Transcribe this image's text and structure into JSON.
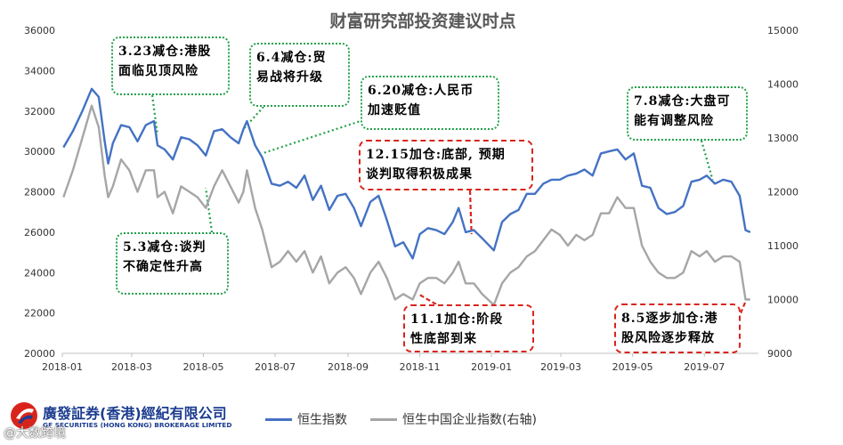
{
  "chart_data": {
    "type": "line",
    "title": "财富研究部投资建议时点",
    "x_ticks": [
      "2018-01",
      "2018-03",
      "2018-05",
      "2018-07",
      "2018-09",
      "2018-11",
      "2019-01",
      "2019-03",
      "2019-05",
      "2019-07"
    ],
    "y_left": {
      "min": 20000,
      "max": 36000,
      "ticks": [
        "20000",
        "22000",
        "24000",
        "26000",
        "28000",
        "30000",
        "32000",
        "34000",
        "36000"
      ]
    },
    "y_right": {
      "min": 9000,
      "max": 15000,
      "ticks": [
        "9000",
        "10000",
        "11000",
        "12000",
        "13000",
        "14000",
        "15000"
      ]
    },
    "series": [
      {
        "name": "恒生指数",
        "axis": "left",
        "color": "#4472c4",
        "points": [
          [
            "2018-01-02",
            30200
          ],
          [
            "2018-01-10",
            31000
          ],
          [
            "2018-01-18",
            32000
          ],
          [
            "2018-01-26",
            33100
          ],
          [
            "2018-02-01",
            32700
          ],
          [
            "2018-02-06",
            30500
          ],
          [
            "2018-02-09",
            29400
          ],
          [
            "2018-02-13",
            30400
          ],
          [
            "2018-02-20",
            31300
          ],
          [
            "2018-02-27",
            31200
          ],
          [
            "2018-03-06",
            30500
          ],
          [
            "2018-03-13",
            31300
          ],
          [
            "2018-03-20",
            31500
          ],
          [
            "2018-03-23",
            30300
          ],
          [
            "2018-03-29",
            30100
          ],
          [
            "2018-04-05",
            29600
          ],
          [
            "2018-04-12",
            30700
          ],
          [
            "2018-04-19",
            30600
          ],
          [
            "2018-04-26",
            30300
          ],
          [
            "2018-05-03",
            29800
          ],
          [
            "2018-05-10",
            31000
          ],
          [
            "2018-05-17",
            31100
          ],
          [
            "2018-05-24",
            30700
          ],
          [
            "2018-05-31",
            30400
          ],
          [
            "2018-06-04",
            31100
          ],
          [
            "2018-06-07",
            31500
          ],
          [
            "2018-06-14",
            30300
          ],
          [
            "2018-06-20",
            29700
          ],
          [
            "2018-06-28",
            28400
          ],
          [
            "2018-07-05",
            28300
          ],
          [
            "2018-07-12",
            28500
          ],
          [
            "2018-07-19",
            28200
          ],
          [
            "2018-07-26",
            28800
          ],
          [
            "2018-08-02",
            27600
          ],
          [
            "2018-08-09",
            28300
          ],
          [
            "2018-08-16",
            27100
          ],
          [
            "2018-08-23",
            27800
          ],
          [
            "2018-08-30",
            27900
          ],
          [
            "2018-09-06",
            27200
          ],
          [
            "2018-09-12",
            26300
          ],
          [
            "2018-09-20",
            27500
          ],
          [
            "2018-09-27",
            27800
          ],
          [
            "2018-10-04",
            26600
          ],
          [
            "2018-10-11",
            25300
          ],
          [
            "2018-10-18",
            25500
          ],
          [
            "2018-10-26",
            24700
          ],
          [
            "2018-11-01",
            25900
          ],
          [
            "2018-11-08",
            26200
          ],
          [
            "2018-11-15",
            26100
          ],
          [
            "2018-11-22",
            25900
          ],
          [
            "2018-11-29",
            26500
          ],
          [
            "2018-12-04",
            27200
          ],
          [
            "2018-12-10",
            26000
          ],
          [
            "2018-12-17",
            26100
          ],
          [
            "2018-12-24",
            25700
          ],
          [
            "2019-01-03",
            25100
          ],
          [
            "2019-01-10",
            26500
          ],
          [
            "2019-01-17",
            26900
          ],
          [
            "2019-01-24",
            27100
          ],
          [
            "2019-01-31",
            27900
          ],
          [
            "2019-02-07",
            27900
          ],
          [
            "2019-02-14",
            28400
          ],
          [
            "2019-02-21",
            28600
          ],
          [
            "2019-02-28",
            28600
          ],
          [
            "2019-03-07",
            28800
          ],
          [
            "2019-03-14",
            28900
          ],
          [
            "2019-03-21",
            29100
          ],
          [
            "2019-03-28",
            28800
          ],
          [
            "2019-04-04",
            29900
          ],
          [
            "2019-04-11",
            30000
          ],
          [
            "2019-04-18",
            30100
          ],
          [
            "2019-04-25",
            29600
          ],
          [
            "2019-05-02",
            29900
          ],
          [
            "2019-05-09",
            28300
          ],
          [
            "2019-05-16",
            28200
          ],
          [
            "2019-05-23",
            27200
          ],
          [
            "2019-05-30",
            26900
          ],
          [
            "2019-06-06",
            27000
          ],
          [
            "2019-06-13",
            27300
          ],
          [
            "2019-06-20",
            28500
          ],
          [
            "2019-06-27",
            28600
          ],
          [
            "2019-07-03",
            28800
          ],
          [
            "2019-07-10",
            28400
          ],
          [
            "2019-07-17",
            28600
          ],
          [
            "2019-07-24",
            28500
          ],
          [
            "2019-07-31",
            27800
          ],
          [
            "2019-08-05",
            26100
          ],
          [
            "2019-08-09",
            26000
          ]
        ]
      },
      {
        "name": "恒生中国企业指数(右轴)",
        "axis": "right",
        "color": "#a6a6a6",
        "points": [
          [
            "2018-01-02",
            11900
          ],
          [
            "2018-01-10",
            12400
          ],
          [
            "2018-01-18",
            13000
          ],
          [
            "2018-01-26",
            13600
          ],
          [
            "2018-02-01",
            13200
          ],
          [
            "2018-02-06",
            12300
          ],
          [
            "2018-02-09",
            11900
          ],
          [
            "2018-02-13",
            12100
          ],
          [
            "2018-02-20",
            12600
          ],
          [
            "2018-02-27",
            12400
          ],
          [
            "2018-03-06",
            12000
          ],
          [
            "2018-03-13",
            12400
          ],
          [
            "2018-03-20",
            12400
          ],
          [
            "2018-03-23",
            11900
          ],
          [
            "2018-03-29",
            12000
          ],
          [
            "2018-04-05",
            11600
          ],
          [
            "2018-04-12",
            12100
          ],
          [
            "2018-04-19",
            12000
          ],
          [
            "2018-04-26",
            11900
          ],
          [
            "2018-05-03",
            11700
          ],
          [
            "2018-05-10",
            12100
          ],
          [
            "2018-05-17",
            12400
          ],
          [
            "2018-05-24",
            12100
          ],
          [
            "2018-05-31",
            11800
          ],
          [
            "2018-06-04",
            12000
          ],
          [
            "2018-06-07",
            12400
          ],
          [
            "2018-06-14",
            11700
          ],
          [
            "2018-06-20",
            11300
          ],
          [
            "2018-06-28",
            10600
          ],
          [
            "2018-07-05",
            10700
          ],
          [
            "2018-07-12",
            10900
          ],
          [
            "2018-07-19",
            10700
          ],
          [
            "2018-07-26",
            10900
          ],
          [
            "2018-08-02",
            10500
          ],
          [
            "2018-08-09",
            10800
          ],
          [
            "2018-08-16",
            10300
          ],
          [
            "2018-08-23",
            10500
          ],
          [
            "2018-08-30",
            10600
          ],
          [
            "2018-09-06",
            10400
          ],
          [
            "2018-09-12",
            10100
          ],
          [
            "2018-09-20",
            10500
          ],
          [
            "2018-09-27",
            10700
          ],
          [
            "2018-10-04",
            10400
          ],
          [
            "2018-10-11",
            10000
          ],
          [
            "2018-10-18",
            10100
          ],
          [
            "2018-10-26",
            10000
          ],
          [
            "2018-11-01",
            10300
          ],
          [
            "2018-11-08",
            10400
          ],
          [
            "2018-11-15",
            10400
          ],
          [
            "2018-11-22",
            10300
          ],
          [
            "2018-11-29",
            10500
          ],
          [
            "2018-12-04",
            10700
          ],
          [
            "2018-12-10",
            10300
          ],
          [
            "2018-12-17",
            10300
          ],
          [
            "2018-12-24",
            10100
          ],
          [
            "2019-01-03",
            9900
          ],
          [
            "2019-01-10",
            10300
          ],
          [
            "2019-01-17",
            10500
          ],
          [
            "2019-01-24",
            10600
          ],
          [
            "2019-01-31",
            10800
          ],
          [
            "2019-02-07",
            10900
          ],
          [
            "2019-02-14",
            11100
          ],
          [
            "2019-02-21",
            11300
          ],
          [
            "2019-02-28",
            11200
          ],
          [
            "2019-03-07",
            11000
          ],
          [
            "2019-03-14",
            11200
          ],
          [
            "2019-03-21",
            11100
          ],
          [
            "2019-03-28",
            11200
          ],
          [
            "2019-04-04",
            11600
          ],
          [
            "2019-04-11",
            11600
          ],
          [
            "2019-04-18",
            11900
          ],
          [
            "2019-04-25",
            11700
          ],
          [
            "2019-05-02",
            11700
          ],
          [
            "2019-05-09",
            11000
          ],
          [
            "2019-05-16",
            10700
          ],
          [
            "2019-05-23",
            10500
          ],
          [
            "2019-05-30",
            10400
          ],
          [
            "2019-06-06",
            10400
          ],
          [
            "2019-06-13",
            10500
          ],
          [
            "2019-06-20",
            10900
          ],
          [
            "2019-06-27",
            10800
          ],
          [
            "2019-07-03",
            10900
          ],
          [
            "2019-07-10",
            10700
          ],
          [
            "2019-07-17",
            10800
          ],
          [
            "2019-07-24",
            10800
          ],
          [
            "2019-07-31",
            10700
          ],
          [
            "2019-08-05",
            10000
          ],
          [
            "2019-08-09",
            10000
          ]
        ]
      }
    ],
    "annotations": [
      {
        "id": "a1",
        "style": "green",
        "lines": [
          "3.23减仓:港股",
          "面临见顶风险"
        ]
      },
      {
        "id": "a2",
        "style": "green",
        "lines": [
          "6.4减仓:贸",
          "易战将升级"
        ]
      },
      {
        "id": "a3",
        "style": "green",
        "lines": [
          "6.20减仓:人民币",
          "加速贬值"
        ]
      },
      {
        "id": "a4",
        "style": "green",
        "lines": [
          "5.3减仓:谈判",
          "不确定性升高"
        ]
      },
      {
        "id": "a5",
        "style": "red",
        "lines": [
          "12.15加仓:底部, 预期",
          "谈判取得积极成果"
        ]
      },
      {
        "id": "a6",
        "style": "red",
        "lines": [
          "11.1加仓:阶段",
          "性底部到来"
        ]
      },
      {
        "id": "a7",
        "style": "green",
        "lines": [
          "7.8减仓:大盘可",
          "能有调整风险"
        ]
      },
      {
        "id": "a8",
        "style": "red",
        "lines": [
          "8.5逐步加仓:港",
          "股风险逐步释放"
        ]
      }
    ]
  },
  "footer": {
    "company_cn": "廣發証券(香港)經紀有限公司",
    "company_en": "GF SECURITIES (HONG KONG) BROKERAGE LIMITED",
    "watermark": "@大数跨境"
  },
  "colors": {
    "hsi": "#4472c4",
    "hscei": "#a6a6a6",
    "green_box": "#22a14a",
    "red_box": "#d9241c",
    "logo": "#1b3c8f"
  }
}
